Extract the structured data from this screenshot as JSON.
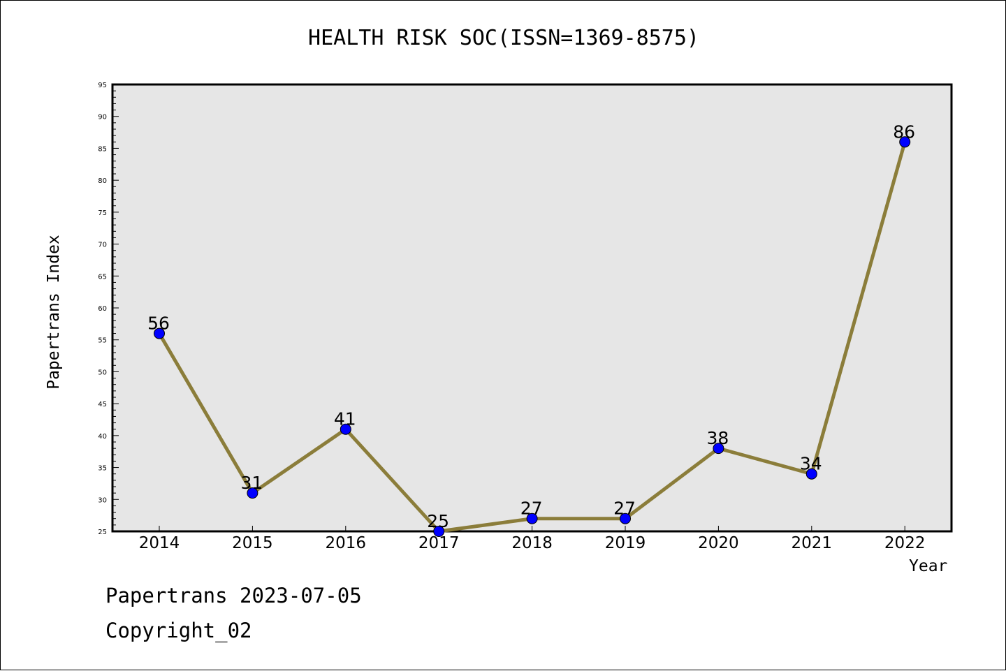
{
  "chart_data": {
    "type": "line",
    "title": "HEALTH RISK SOC(ISSN=1369-8575)",
    "xlabel": "Year",
    "ylabel": "Papertrans Index",
    "categories": [
      "2014",
      "2015",
      "2016",
      "2017",
      "2018",
      "2019",
      "2020",
      "2021",
      "2022"
    ],
    "values": [
      56,
      31,
      41,
      25,
      27,
      27,
      38,
      34,
      86
    ],
    "data_labels": [
      "56",
      "31",
      "41",
      "25",
      "27",
      "27",
      "38",
      "34",
      "86"
    ],
    "ylim": [
      25,
      95
    ],
    "yticks": [
      "25",
      "30",
      "35",
      "40",
      "45",
      "50",
      "55",
      "60",
      "65",
      "70",
      "75",
      "80",
      "85",
      "90",
      "95"
    ],
    "grid": false,
    "colors": {
      "line": "#8b7d3a",
      "marker": "#0000ff",
      "plot_background": "#e6e6e6"
    }
  },
  "footer": {
    "line1": "Papertrans 2023-07-05",
    "line2": "Copyright_02"
  }
}
